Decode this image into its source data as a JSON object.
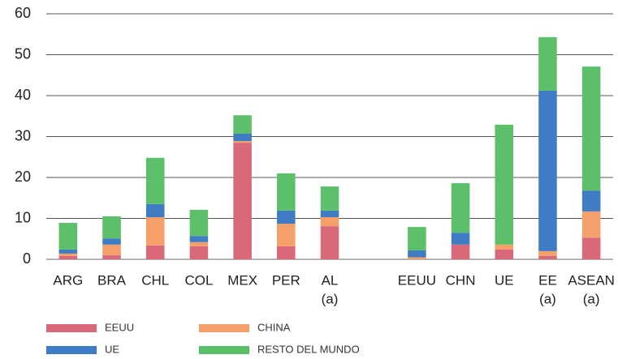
{
  "chart_data": {
    "type": "stacked_bar",
    "categories": [
      "ARG",
      "BRA",
      "CHL",
      "COL",
      "MEX",
      "PER",
      "AL",
      null,
      "EEUU",
      "CHN",
      "UE",
      "EE",
      "ASEAN"
    ],
    "category_notes": [
      null,
      null,
      null,
      null,
      null,
      null,
      "(a)",
      null,
      null,
      null,
      null,
      "(a)",
      "(a)"
    ],
    "series": [
      {
        "name": "EEUU",
        "color": "#d9697a",
        "values": [
          0.8,
          1,
          3.4,
          3.2,
          28.5,
          3.2,
          8.1,
          null,
          0,
          3.6,
          2.4,
          0.8,
          5.3
        ]
      },
      {
        "name": "CHINA",
        "color": "#f5a06b",
        "values": [
          0.6,
          2.6,
          6.9,
          1,
          0.4,
          5.5,
          2.2,
          null,
          0.5,
          0,
          1.2,
          1.2,
          6.4
        ]
      },
      {
        "name": "UE",
        "color": "#3f7cc4",
        "values": [
          1,
          1.5,
          3.2,
          1.5,
          1.8,
          3.2,
          1.6,
          null,
          1.7,
          2.9,
          0,
          39.2,
          5.1
        ]
      },
      {
        "name": "RESTO DEL MUNDO",
        "color": "#5cbf6a",
        "values": [
          6.5,
          5.4,
          11.3,
          6.4,
          4.5,
          9.1,
          5.9,
          null,
          5.7,
          12.1,
          29.3,
          13.1,
          30.3
        ]
      }
    ],
    "ylim": [
      0,
      60
    ],
    "yticks": [
      0,
      10,
      20,
      30,
      40,
      50,
      60
    ],
    "grid": true
  }
}
